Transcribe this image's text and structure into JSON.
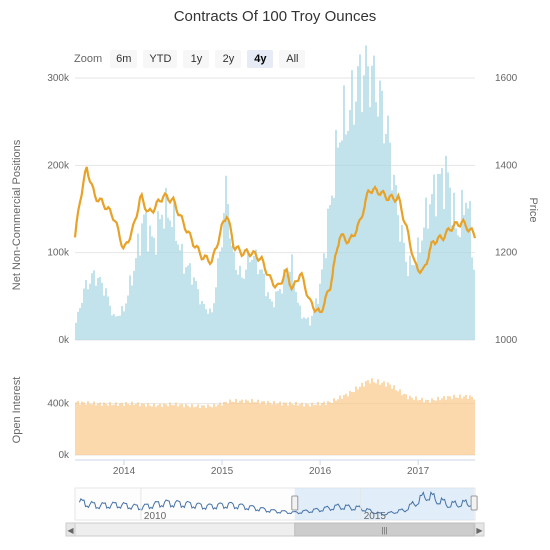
{
  "title": "Contracts Of 100 Troy Ounces",
  "zoom": {
    "label": "Zoom",
    "buttons": [
      "6m",
      "YTD",
      "1y",
      "2y",
      "4y",
      "All"
    ],
    "selected": "4y"
  },
  "colors": {
    "positions_bars": "#a9d6e3",
    "price_line": "#e8a228",
    "open_interest_bars": "#f9c989",
    "navigator_line": "#4572a7",
    "navigator_selection": "#cfe2f5"
  },
  "chart_data": [
    {
      "type": "bar",
      "title": "Contracts Of 100 Troy Ounces",
      "ylabel": "Net Non-Commercial Positions",
      "y2label": "Price",
      "ylim": [
        0,
        300000
      ],
      "y2lim": [
        1000,
        1600
      ],
      "y_ticks": [
        "0k",
        "100k",
        "200k",
        "300k"
      ],
      "y2_ticks": [
        "1000",
        "1200",
        "1400",
        "1600"
      ],
      "x_ticks": [
        "2014",
        "2015",
        "2016",
        "2017"
      ],
      "xlim": [
        2013.5,
        2017.58
      ],
      "grid": true,
      "bar_series": {
        "name": "Net Non-Commercial Positions",
        "x": [
          2013.5,
          2013.6,
          2013.7,
          2013.8,
          2013.9,
          2014.0,
          2014.1,
          2014.2,
          2014.3,
          2014.4,
          2014.5,
          2014.6,
          2014.7,
          2014.8,
          2014.9,
          2015.0,
          2015.05,
          2015.1,
          2015.2,
          2015.3,
          2015.4,
          2015.5,
          2015.6,
          2015.7,
          2015.8,
          2015.9,
          2016.0,
          2016.1,
          2016.2,
          2016.3,
          2016.4,
          2016.5,
          2016.6,
          2016.7,
          2016.8,
          2016.9,
          2017.0,
          2017.1,
          2017.2,
          2017.3,
          2017.4,
          2017.5,
          2017.58
        ],
        "values": [
          15000,
          60000,
          75000,
          60000,
          25000,
          35000,
          80000,
          140000,
          110000,
          150000,
          140000,
          90000,
          75000,
          40000,
          30000,
          120000,
          180000,
          100000,
          70000,
          100000,
          80000,
          40000,
          60000,
          90000,
          30000,
          20000,
          60000,
          150000,
          240000,
          260000,
          300000,
          310000,
          280000,
          230000,
          140000,
          80000,
          100000,
          150000,
          180000,
          190000,
          120000,
          170000,
          70000
        ]
      },
      "line_series": {
        "name": "Price",
        "x": [
          2013.5,
          2013.55,
          2013.62,
          2013.7,
          2013.8,
          2013.9,
          2014.0,
          2014.1,
          2014.17,
          2014.25,
          2014.3,
          2014.4,
          2014.5,
          2014.6,
          2014.7,
          2014.8,
          2014.9,
          2015.0,
          2015.05,
          2015.12,
          2015.2,
          2015.3,
          2015.4,
          2015.5,
          2015.58,
          2015.65,
          2015.72,
          2015.8,
          2015.9,
          2016.0,
          2016.1,
          2016.2,
          2016.3,
          2016.4,
          2016.5,
          2016.6,
          2016.7,
          2016.8,
          2016.9,
          2016.97,
          2017.05,
          2017.15,
          2017.25,
          2017.35,
          2017.45,
          2017.58
        ],
        "values": [
          1235,
          1320,
          1395,
          1330,
          1310,
          1280,
          1205,
          1260,
          1330,
          1290,
          1300,
          1330,
          1320,
          1270,
          1225,
          1190,
          1180,
          1260,
          1290,
          1215,
          1200,
          1200,
          1185,
          1135,
          1120,
          1160,
          1115,
          1155,
          1085,
          1060,
          1120,
          1240,
          1225,
          1265,
          1345,
          1340,
          1325,
          1325,
          1240,
          1170,
          1155,
          1225,
          1235,
          1260,
          1270,
          1240
        ]
      }
    },
    {
      "type": "bar",
      "ylabel": "Open Interest",
      "ylim": [
        0,
        700000
      ],
      "y_ticks": [
        "0k",
        "400k"
      ],
      "x": [
        2013.5,
        2013.7,
        2013.9,
        2014.1,
        2014.3,
        2014.5,
        2014.7,
        2014.9,
        2015.1,
        2015.3,
        2015.5,
        2015.7,
        2015.9,
        2016.1,
        2016.3,
        2016.5,
        2016.7,
        2016.9,
        2017.1,
        2017.3,
        2017.5,
        2017.58
      ],
      "values": [
        410000,
        400000,
        395000,
        400000,
        385000,
        395000,
        380000,
        380000,
        420000,
        420000,
        405000,
        400000,
        390000,
        410000,
        480000,
        580000,
        550000,
        450000,
        420000,
        450000,
        455000,
        445000
      ]
    },
    {
      "type": "line",
      "x_ticks": [
        "2010",
        "2015"
      ],
      "xlim": [
        2008.5,
        2017.6
      ],
      "selected_range": [
        2013.5,
        2017.58
      ],
      "x": [
        2008.6,
        2009.0,
        2009.5,
        2010.0,
        2010.5,
        2011.0,
        2011.5,
        2012.0,
        2012.5,
        2013.0,
        2013.5,
        2014.0,
        2014.5,
        2015.0,
        2015.5,
        2016.0,
        2016.5,
        2017.0,
        2017.5
      ],
      "values": [
        180000,
        140000,
        150000,
        120000,
        170000,
        160000,
        130000,
        150000,
        120000,
        80000,
        60000,
        90000,
        130000,
        110000,
        40000,
        90000,
        260000,
        150000,
        170000
      ]
    }
  ]
}
